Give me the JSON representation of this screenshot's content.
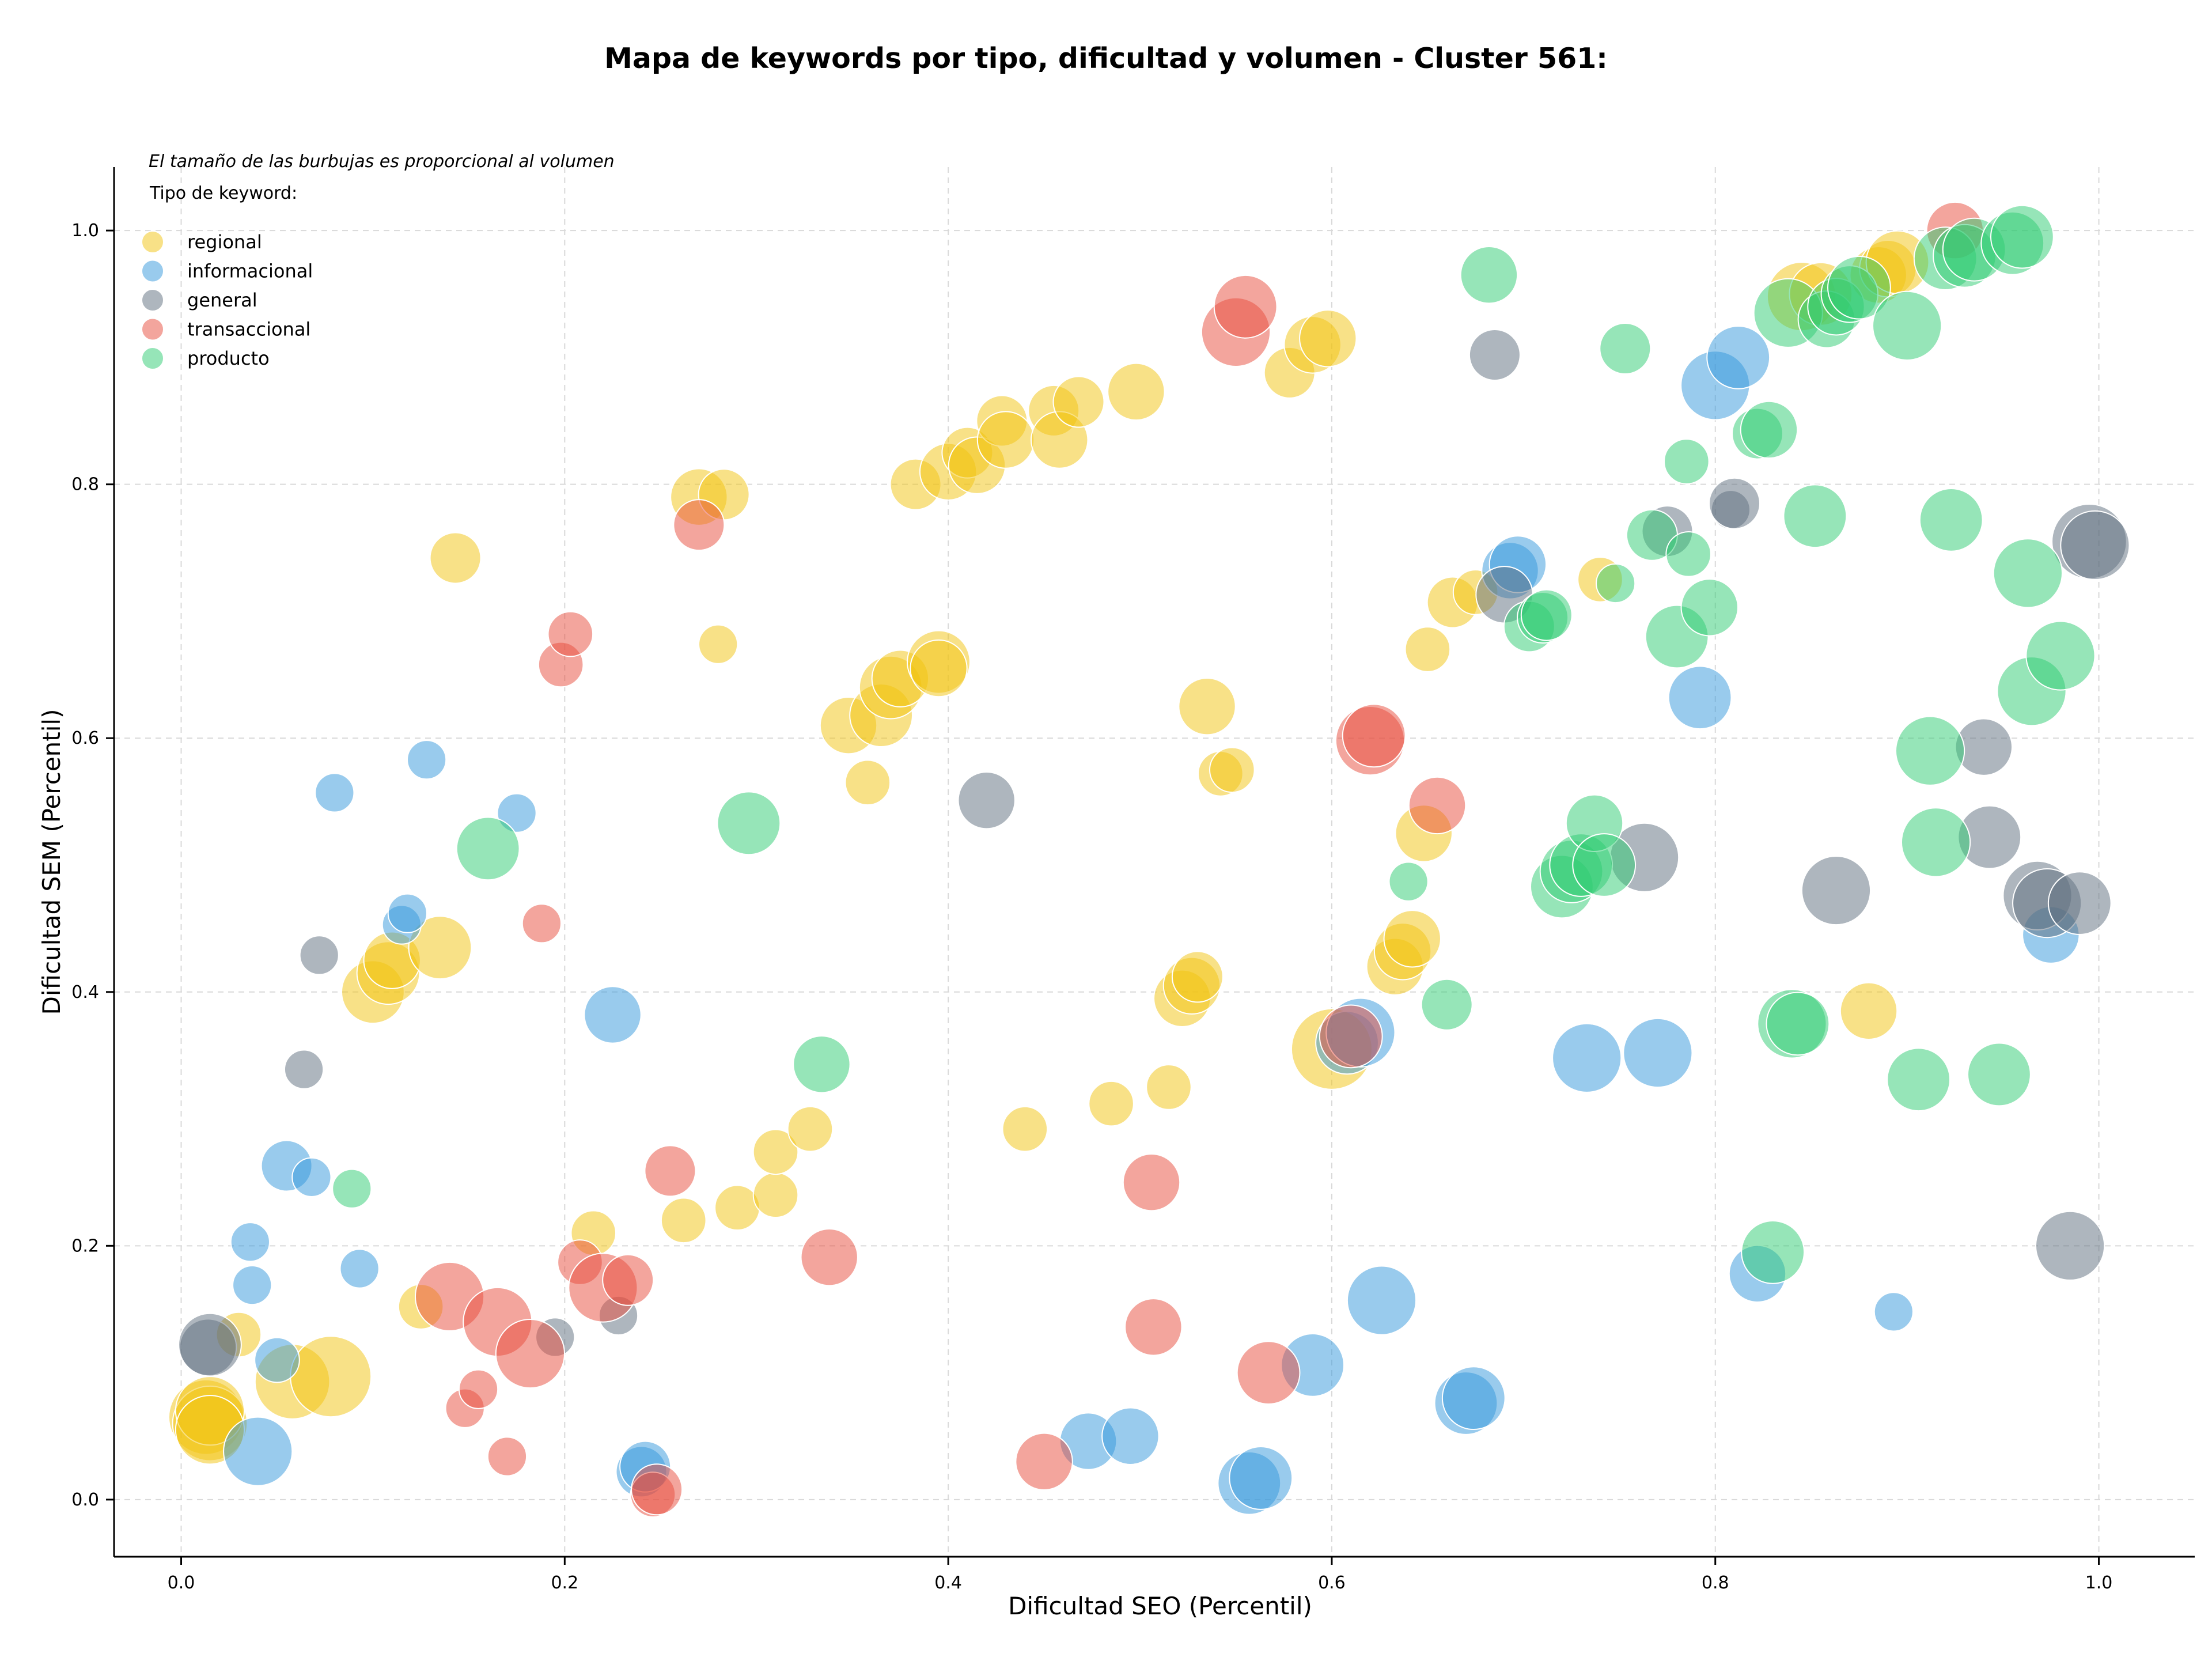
{
  "chart_data": {
    "type": "scatter",
    "title": "Mapa de keywords por tipo, dificultad y volumen - Cluster 561:",
    "xlabel": "Dificultad SEO (Percentil)",
    "ylabel": "Dificultad SEM (Percentil)",
    "xlim": [
      -0.035,
      1.05
    ],
    "ylim": [
      -0.045,
      1.05
    ],
    "xticks": [
      "0.0",
      "0.2",
      "0.4",
      "0.6",
      "0.8",
      "1.0"
    ],
    "yticks": [
      "0.0",
      "0.2",
      "0.4",
      "0.6",
      "0.8",
      "1.0"
    ],
    "xtick_values": [
      0,
      0.2,
      0.4,
      0.6,
      0.8,
      1.0
    ],
    "ytick_values": [
      0,
      0.2,
      0.4,
      0.6,
      0.8,
      1.0
    ],
    "grid": true,
    "legend_position": "top-left",
    "legend_note": "El tamaño de las burbujas es proporcional al volumen",
    "legend_title": "Tipo de keyword:",
    "series": [
      {
        "name": "regional",
        "color": "#f1c40f",
        "points": [
          [
            0.013,
            0.065,
            0.9
          ],
          [
            0.015,
            0.06,
            0.9
          ],
          [
            0.015,
            0.07,
            0.8
          ],
          [
            0.015,
            0.055,
            0.8
          ],
          [
            0.03,
            0.13,
            0.4
          ],
          [
            0.058,
            0.093,
            0.9
          ],
          [
            0.078,
            0.097,
            1.0
          ],
          [
            0.1,
            0.4,
            0.7
          ],
          [
            0.108,
            0.415,
            0.7
          ],
          [
            0.11,
            0.425,
            0.6
          ],
          [
            0.125,
            0.152,
            0.4
          ],
          [
            0.135,
            0.435,
            0.7
          ],
          [
            0.143,
            0.742,
            0.5
          ],
          [
            0.215,
            0.21,
            0.4
          ],
          [
            0.262,
            0.22,
            0.4
          ],
          [
            0.27,
            0.79,
            0.6
          ],
          [
            0.28,
            0.674,
            0.3
          ],
          [
            0.283,
            0.792,
            0.5
          ],
          [
            0.29,
            0.23,
            0.4
          ],
          [
            0.31,
            0.24,
            0.4
          ],
          [
            0.31,
            0.274,
            0.4
          ],
          [
            0.328,
            0.292,
            0.4
          ],
          [
            0.348,
            0.61,
            0.6
          ],
          [
            0.358,
            0.565,
            0.4
          ],
          [
            0.365,
            0.618,
            0.7
          ],
          [
            0.37,
            0.64,
            0.7
          ],
          [
            0.375,
            0.647,
            0.6
          ],
          [
            0.383,
            0.8,
            0.5
          ],
          [
            0.395,
            0.66,
            0.7
          ],
          [
            0.395,
            0.655,
            0.6
          ],
          [
            0.4,
            0.81,
            0.6
          ],
          [
            0.41,
            0.825,
            0.5
          ],
          [
            0.415,
            0.815,
            0.6
          ],
          [
            0.428,
            0.85,
            0.5
          ],
          [
            0.43,
            0.835,
            0.6
          ],
          [
            0.44,
            0.292,
            0.4
          ],
          [
            0.455,
            0.858,
            0.5
          ],
          [
            0.458,
            0.835,
            0.6
          ],
          [
            0.468,
            0.865,
            0.5
          ],
          [
            0.485,
            0.312,
            0.4
          ],
          [
            0.498,
            0.873,
            0.6
          ],
          [
            0.515,
            0.325,
            0.4
          ],
          [
            0.522,
            0.395,
            0.6
          ],
          [
            0.527,
            0.405,
            0.6
          ],
          [
            0.53,
            0.412,
            0.5
          ],
          [
            0.535,
            0.625,
            0.6
          ],
          [
            0.542,
            0.572,
            0.4
          ],
          [
            0.548,
            0.575,
            0.4
          ],
          [
            0.578,
            0.888,
            0.5
          ],
          [
            0.59,
            0.91,
            0.6
          ],
          [
            0.598,
            0.915,
            0.6
          ],
          [
            0.6,
            0.355,
            1.0
          ],
          [
            0.633,
            0.42,
            0.6
          ],
          [
            0.637,
            0.432,
            0.6
          ],
          [
            0.642,
            0.442,
            0.6
          ],
          [
            0.648,
            0.525,
            0.6
          ],
          [
            0.65,
            0.67,
            0.4
          ],
          [
            0.663,
            0.707,
            0.5
          ],
          [
            0.675,
            0.715,
            0.4
          ],
          [
            0.74,
            0.725,
            0.4
          ],
          [
            0.845,
            0.948,
            0.8
          ],
          [
            0.855,
            0.95,
            0.7
          ],
          [
            0.88,
            0.385,
            0.6
          ],
          [
            0.885,
            0.965,
            0.6
          ],
          [
            0.89,
            0.97,
            0.6
          ],
          [
            0.895,
            0.975,
            0.7
          ]
        ]
      },
      {
        "name": "informacional",
        "color": "#3498db",
        "points": [
          [
            0.036,
            0.203,
            0.3
          ],
          [
            0.037,
            0.169,
            0.3
          ],
          [
            0.04,
            0.038,
            0.8
          ],
          [
            0.05,
            0.11,
            0.4
          ],
          [
            0.055,
            0.263,
            0.5
          ],
          [
            0.068,
            0.254,
            0.3
          ],
          [
            0.08,
            0.557,
            0.3
          ],
          [
            0.093,
            0.182,
            0.3
          ],
          [
            0.115,
            0.453,
            0.3
          ],
          [
            0.118,
            0.462,
            0.3
          ],
          [
            0.128,
            0.583,
            0.3
          ],
          [
            0.175,
            0.541,
            0.3
          ],
          [
            0.225,
            0.382,
            0.6
          ],
          [
            0.24,
            0.022,
            0.5
          ],
          [
            0.242,
            0.026,
            0.5
          ],
          [
            0.473,
            0.046,
            0.6
          ],
          [
            0.495,
            0.05,
            0.6
          ],
          [
            0.557,
            0.013,
            0.7
          ],
          [
            0.563,
            0.017,
            0.7
          ],
          [
            0.59,
            0.106,
            0.7
          ],
          [
            0.608,
            0.36,
            0.7
          ],
          [
            0.615,
            0.368,
            0.8
          ],
          [
            0.626,
            0.157,
            0.8
          ],
          [
            0.67,
            0.076,
            0.7
          ],
          [
            0.674,
            0.08,
            0.7
          ],
          [
            0.693,
            0.732,
            0.6
          ],
          [
            0.697,
            0.737,
            0.6
          ],
          [
            0.733,
            0.348,
            0.8
          ],
          [
            0.77,
            0.352,
            0.8
          ],
          [
            0.792,
            0.632,
            0.7
          ],
          [
            0.8,
            0.878,
            0.8
          ],
          [
            0.812,
            0.9,
            0.7
          ],
          [
            0.822,
            0.178,
            0.6
          ],
          [
            0.893,
            0.148,
            0.3
          ],
          [
            0.975,
            0.445,
            0.6
          ]
        ]
      },
      {
        "name": "general",
        "color": "#5d6d7e",
        "points": [
          [
            0.014,
            0.12,
            0.6
          ],
          [
            0.015,
            0.122,
            0.7
          ],
          [
            0.064,
            0.339,
            0.3
          ],
          [
            0.072,
            0.429,
            0.3
          ],
          [
            0.195,
            0.128,
            0.3
          ],
          [
            0.228,
            0.145,
            0.3
          ],
          [
            0.42,
            0.551,
            0.6
          ],
          [
            0.685,
            0.902,
            0.5
          ],
          [
            0.69,
            0.713,
            0.6
          ],
          [
            0.763,
            0.506,
            0.8
          ],
          [
            0.775,
            0.763,
            0.5
          ],
          [
            0.808,
            0.78,
            0.3
          ],
          [
            0.81,
            0.785,
            0.5
          ],
          [
            0.863,
            0.48,
            0.8
          ],
          [
            0.94,
            0.593,
            0.6
          ],
          [
            0.943,
            0.522,
            0.7
          ],
          [
            0.968,
            0.476,
            0.8
          ],
          [
            0.973,
            0.47,
            0.8
          ],
          [
            0.99,
            0.47,
            0.7
          ],
          [
            0.985,
            0.2,
            0.8
          ],
          [
            0.995,
            0.755,
            0.9
          ],
          [
            0.998,
            0.752,
            0.8
          ]
        ]
      },
      {
        "name": "transaccional",
        "color": "#e74c3c",
        "points": [
          [
            0.14,
            0.16,
            0.8
          ],
          [
            0.148,
            0.072,
            0.3
          ],
          [
            0.155,
            0.087,
            0.3
          ],
          [
            0.165,
            0.14,
            0.8
          ],
          [
            0.17,
            0.034,
            0.3
          ],
          [
            0.182,
            0.115,
            0.8
          ],
          [
            0.188,
            0.454,
            0.3
          ],
          [
            0.198,
            0.658,
            0.4
          ],
          [
            0.203,
            0.682,
            0.4
          ],
          [
            0.208,
            0.187,
            0.4
          ],
          [
            0.22,
            0.167,
            0.8
          ],
          [
            0.233,
            0.173,
            0.5
          ],
          [
            0.246,
            0.004,
            0.4
          ],
          [
            0.248,
            0.008,
            0.5
          ],
          [
            0.255,
            0.259,
            0.5
          ],
          [
            0.27,
            0.768,
            0.5
          ],
          [
            0.338,
            0.191,
            0.6
          ],
          [
            0.45,
            0.03,
            0.6
          ],
          [
            0.506,
            0.25,
            0.6
          ],
          [
            0.507,
            0.136,
            0.6
          ],
          [
            0.55,
            0.92,
            0.8
          ],
          [
            0.555,
            0.94,
            0.7
          ],
          [
            0.567,
            0.1,
            0.7
          ],
          [
            0.61,
            0.365,
            0.7
          ],
          [
            0.62,
            0.598,
            0.8
          ],
          [
            0.622,
            0.602,
            0.7
          ],
          [
            0.655,
            0.547,
            0.6
          ],
          [
            0.925,
            1.0,
            0.6
          ]
        ]
      },
      {
        "name": "producto",
        "color": "#2ecc71",
        "points": [
          [
            0.089,
            0.245,
            0.3
          ],
          [
            0.16,
            0.513,
            0.7
          ],
          [
            0.296,
            0.533,
            0.7
          ],
          [
            0.334,
            0.343,
            0.6
          ],
          [
            0.64,
            0.487,
            0.3
          ],
          [
            0.66,
            0.39,
            0.5
          ],
          [
            0.682,
            0.965,
            0.6
          ],
          [
            0.703,
            0.688,
            0.5
          ],
          [
            0.71,
            0.695,
            0.5
          ],
          [
            0.712,
            0.697,
            0.5
          ],
          [
            0.72,
            0.483,
            0.7
          ],
          [
            0.725,
            0.495,
            0.7
          ],
          [
            0.73,
            0.5,
            0.7
          ],
          [
            0.737,
            0.533,
            0.6
          ],
          [
            0.742,
            0.5,
            0.7
          ],
          [
            0.748,
            0.722,
            0.3
          ],
          [
            0.753,
            0.907,
            0.5
          ],
          [
            0.767,
            0.76,
            0.5
          ],
          [
            0.78,
            0.68,
            0.7
          ],
          [
            0.785,
            0.818,
            0.4
          ],
          [
            0.786,
            0.745,
            0.4
          ],
          [
            0.797,
            0.703,
            0.6
          ],
          [
            0.822,
            0.84,
            0.5
          ],
          [
            0.828,
            0.843,
            0.6
          ],
          [
            0.83,
            0.195,
            0.7
          ],
          [
            0.838,
            0.935,
            0.8
          ],
          [
            0.84,
            0.375,
            0.8
          ],
          [
            0.843,
            0.375,
            0.7
          ],
          [
            0.852,
            0.775,
            0.7
          ],
          [
            0.858,
            0.93,
            0.6
          ],
          [
            0.863,
            0.94,
            0.6
          ],
          [
            0.87,
            0.95,
            0.6
          ],
          [
            0.875,
            0.955,
            0.7
          ],
          [
            0.9,
            0.925,
            0.8
          ],
          [
            0.906,
            0.331,
            0.7
          ],
          [
            0.912,
            0.59,
            0.8
          ],
          [
            0.915,
            0.518,
            0.8
          ],
          [
            0.92,
            0.978,
            0.7
          ],
          [
            0.923,
            0.772,
            0.7
          ],
          [
            0.93,
            0.98,
            0.7
          ],
          [
            0.935,
            0.985,
            0.7
          ],
          [
            0.948,
            0.335,
            0.7
          ],
          [
            0.955,
            0.99,
            0.7
          ],
          [
            0.96,
            0.995,
            0.7
          ],
          [
            0.963,
            0.73,
            0.8
          ],
          [
            0.965,
            0.637,
            0.8
          ],
          [
            0.98,
            0.665,
            0.8
          ]
        ]
      }
    ]
  }
}
